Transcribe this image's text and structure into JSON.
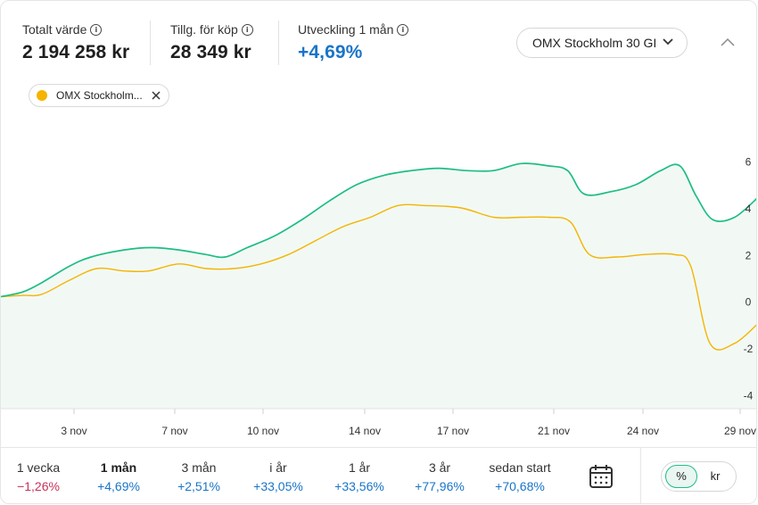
{
  "header": {
    "stats": [
      {
        "label": "Totalt värde",
        "value": "2 194 258 kr"
      },
      {
        "label": "Tillg. för köp",
        "value": "28 349 kr"
      },
      {
        "label": "Utveckling 1 mån",
        "value": "+4,69%"
      }
    ],
    "index_select": "OMX Stockholm 30 GI"
  },
  "chip": {
    "label": "OMX Stockholm...",
    "color": "#f5b400"
  },
  "chart_data": {
    "type": "area",
    "x_ticks": [
      "3 nov",
      "7 nov",
      "10 nov",
      "14 nov",
      "17 nov",
      "21 nov",
      "24 nov",
      "29 nov"
    ],
    "y_ticks": [
      6,
      4,
      2,
      0,
      -2,
      -4
    ],
    "ylim": [
      -4.6,
      7.9
    ],
    "y_axis_position": "right",
    "grid": false,
    "series": [
      {
        "color": "#1dbd84",
        "area": true,
        "values": [
          [
            0,
            0.2
          ],
          [
            0.8,
            0.4
          ],
          [
            1.5,
            0.8
          ],
          [
            2.5,
            1.5
          ],
          [
            3.3,
            1.9
          ],
          [
            4.5,
            2.2
          ],
          [
            5.5,
            2.3
          ],
          [
            6.5,
            2.2
          ],
          [
            7.5,
            2.0
          ],
          [
            8.2,
            1.9
          ],
          [
            9,
            2.3
          ],
          [
            10,
            2.8
          ],
          [
            11,
            3.5
          ],
          [
            12,
            4.3
          ],
          [
            13,
            5.0
          ],
          [
            14,
            5.4
          ],
          [
            15,
            5.6
          ],
          [
            16,
            5.7
          ],
          [
            17,
            5.6
          ],
          [
            18,
            5.6
          ],
          [
            19,
            5.9
          ],
          [
            20,
            5.8
          ],
          [
            20.7,
            5.6
          ],
          [
            21.3,
            4.6
          ],
          [
            22.3,
            4.7
          ],
          [
            23.2,
            5.0
          ],
          [
            24.1,
            5.6
          ],
          [
            24.8,
            5.8
          ],
          [
            25.4,
            4.5
          ],
          [
            26,
            3.5
          ],
          [
            26.8,
            3.6
          ],
          [
            27.7,
            4.5
          ]
        ]
      },
      {
        "name": "OMX Stockholm 30 GI",
        "color": "#f5b400",
        "area": false,
        "values": [
          [
            0,
            0.2
          ],
          [
            0.8,
            0.25
          ],
          [
            1.5,
            0.3
          ],
          [
            2.5,
            0.9
          ],
          [
            3.5,
            1.4
          ],
          [
            4.5,
            1.3
          ],
          [
            5.4,
            1.3
          ],
          [
            6.5,
            1.6
          ],
          [
            7.5,
            1.4
          ],
          [
            8.5,
            1.4
          ],
          [
            9.5,
            1.6
          ],
          [
            10.5,
            2.0
          ],
          [
            11.5,
            2.6
          ],
          [
            12.5,
            3.2
          ],
          [
            13.5,
            3.6
          ],
          [
            14.5,
            4.1
          ],
          [
            15.5,
            4.1
          ],
          [
            16.8,
            4.0
          ],
          [
            18,
            3.6
          ],
          [
            19,
            3.6
          ],
          [
            20,
            3.6
          ],
          [
            20.8,
            3.4
          ],
          [
            21.5,
            2.0
          ],
          [
            22.5,
            1.9
          ],
          [
            23.5,
            2.0
          ],
          [
            24.6,
            2.0
          ],
          [
            25.2,
            1.5
          ],
          [
            25.9,
            -1.8
          ],
          [
            26.8,
            -1.8
          ],
          [
            27.7,
            -0.9
          ]
        ]
      }
    ]
  },
  "ranges": [
    {
      "label": "1 vecka",
      "value": "−1,26%",
      "sign": "neg"
    },
    {
      "label": "1 mån",
      "value": "+4,69%",
      "sign": "pos",
      "active": true
    },
    {
      "label": "3 mån",
      "value": "+2,51%",
      "sign": "pos"
    },
    {
      "label": "i år",
      "value": "+33,05%",
      "sign": "pos"
    },
    {
      "label": "1 år",
      "value": "+33,56%",
      "sign": "pos"
    },
    {
      "label": "3 år",
      "value": "+77,96%",
      "sign": "pos"
    },
    {
      "label": "sedan start",
      "value": "+70,68%",
      "sign": "pos"
    }
  ],
  "toggle": {
    "percent": "%",
    "kr": "kr"
  },
  "icons": {
    "calendar": "calendar-icon",
    "info": "info-icon",
    "chevron": "chevron-down-icon",
    "collapse": "chevron-up-icon",
    "close": "close-icon"
  }
}
